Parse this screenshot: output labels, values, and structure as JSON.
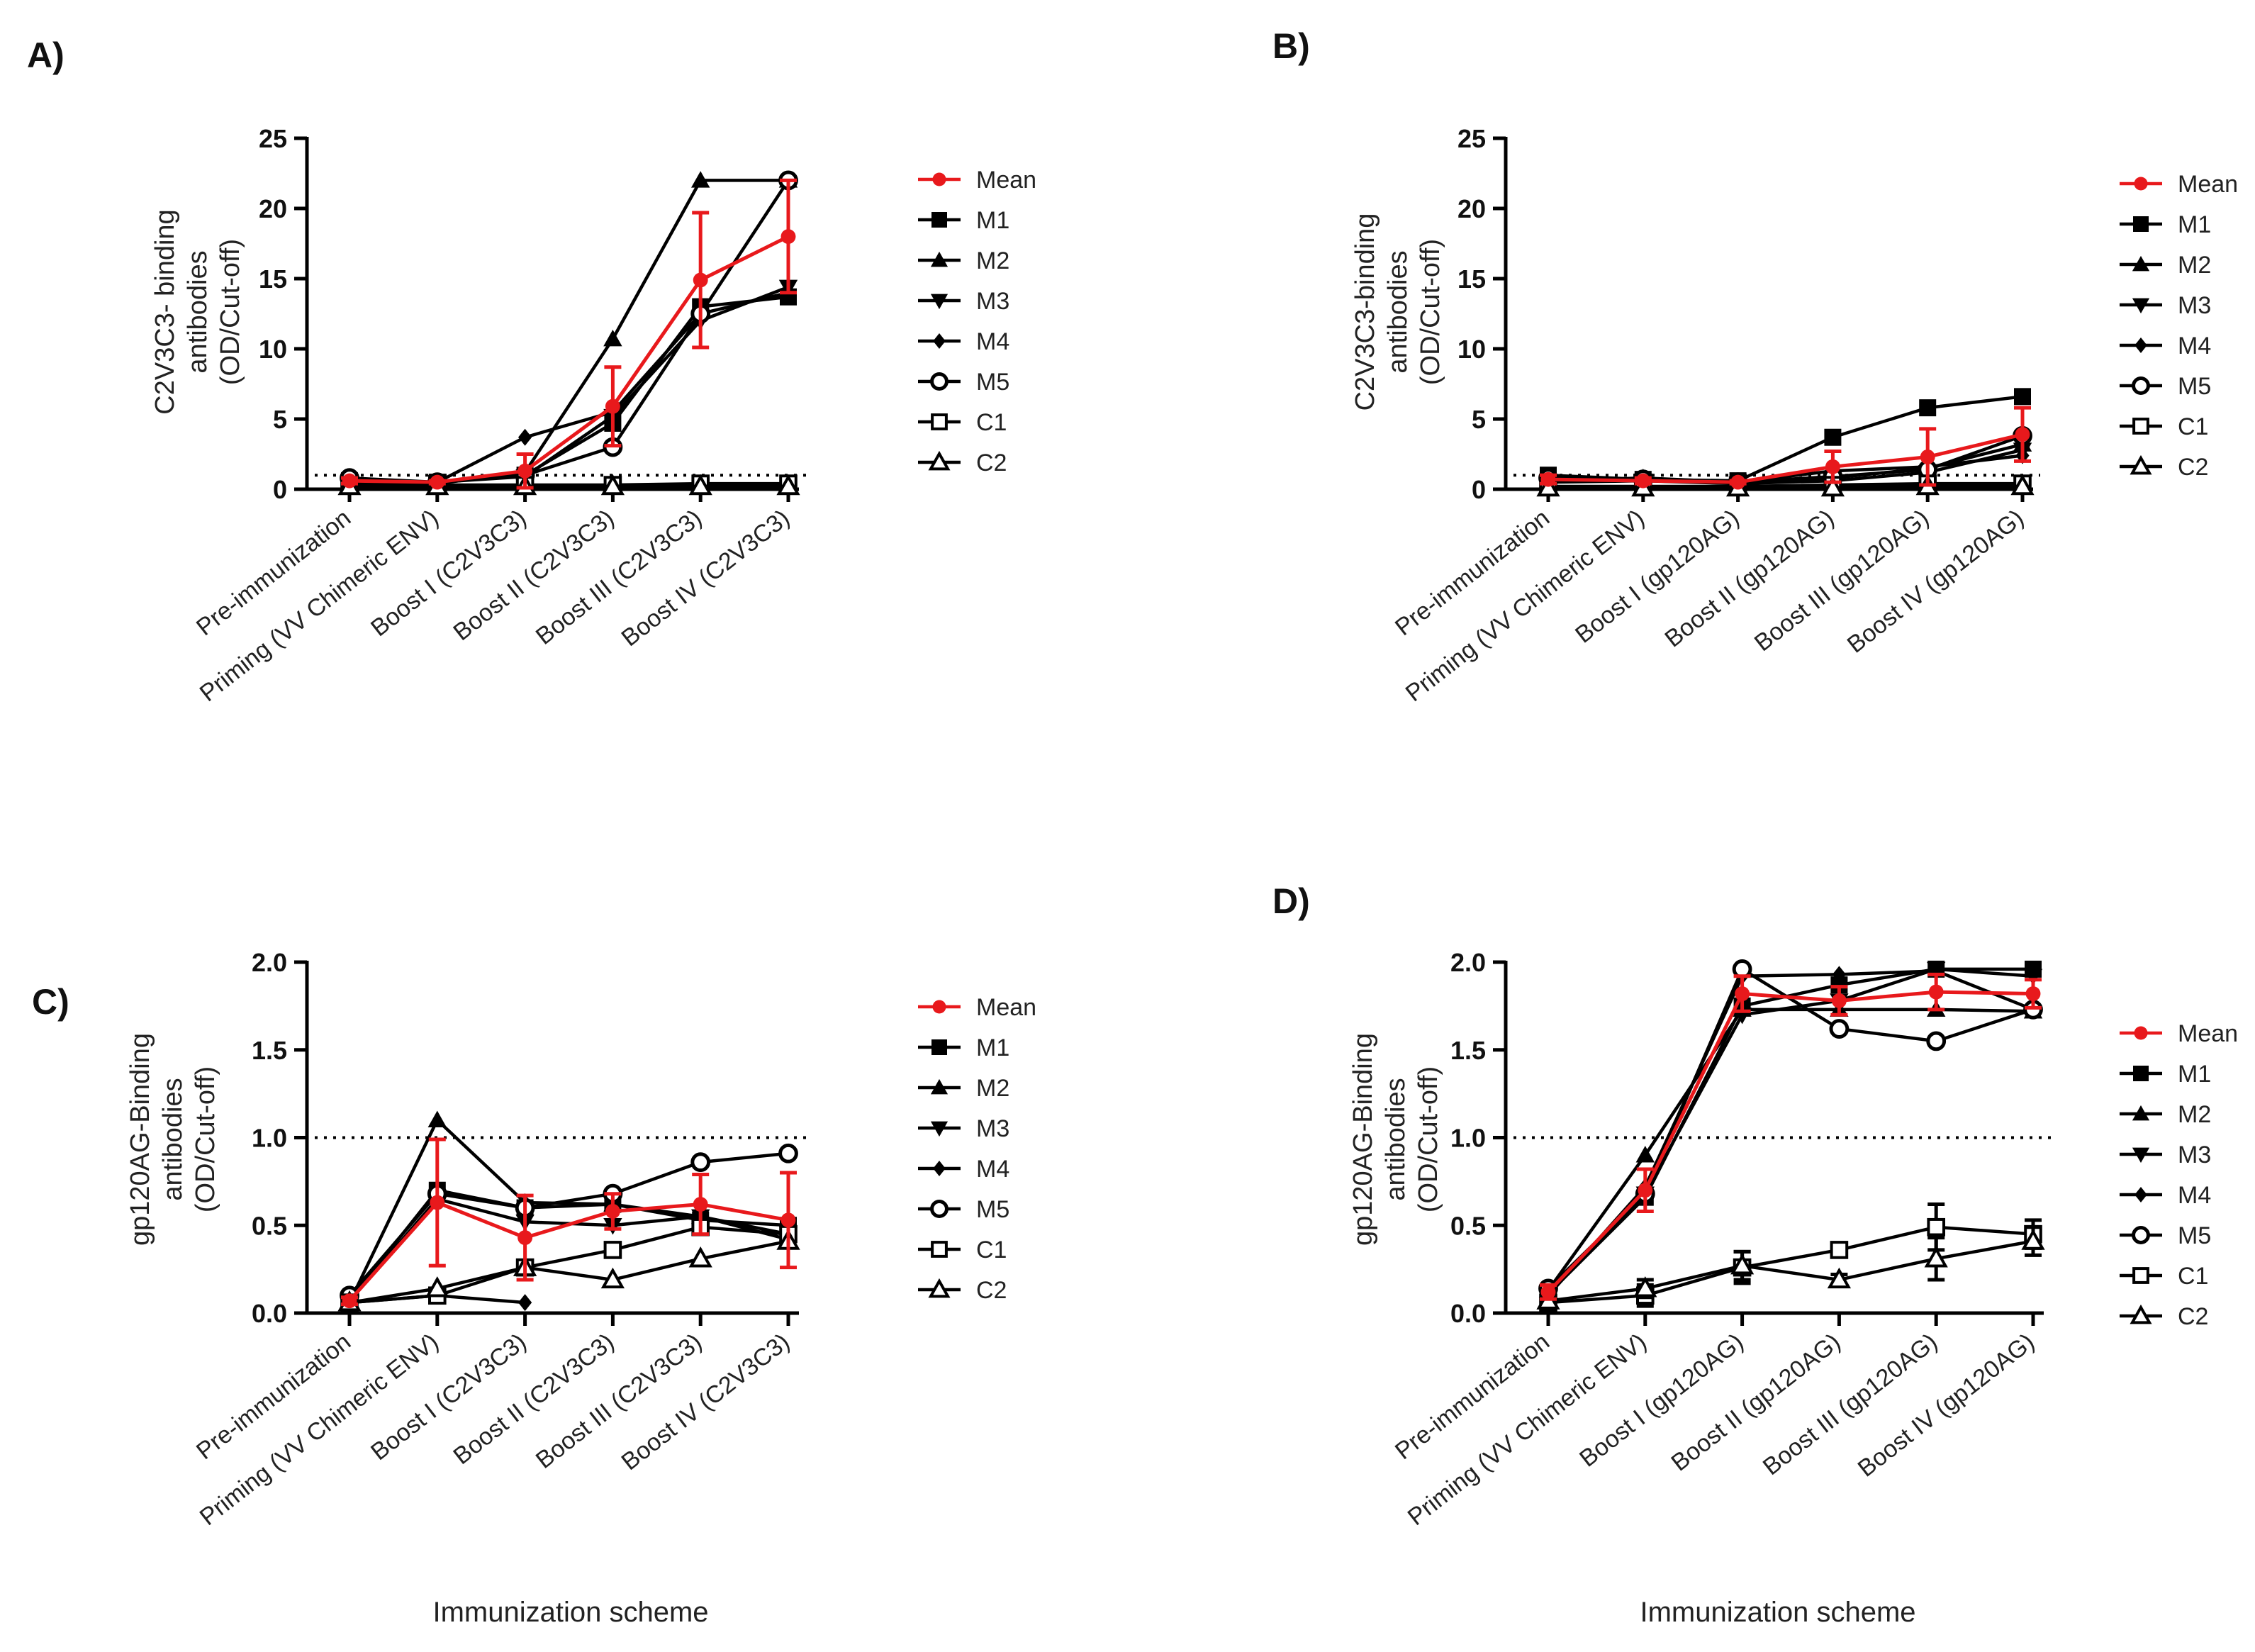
{
  "figure": {
    "xaxis_title": "Immunization scheme",
    "legend_labels": [
      "Mean",
      "M1",
      "M2",
      "M3",
      "M4",
      "M5",
      "C1",
      "C2"
    ],
    "colors": {
      "mean": "#e8191c",
      "animals": "#000000",
      "background": "#ffffff"
    }
  },
  "chart_data": [
    {
      "type": "line",
      "panel_label": "A)",
      "ylabel": [
        "C2V3C3- binding",
        "antibodies",
        "(OD/Cut-off)"
      ],
      "ylim": [
        0,
        25
      ],
      "yticks": [
        "0",
        "5",
        "10",
        "15",
        "20",
        "25"
      ],
      "cutoff": 1,
      "categories": [
        "Pre-immunization",
        "Priming (VV Chimeric ENV)",
        "Boost I (C2V3C3)",
        "Boost II (C2V3C3)",
        "Boost III (C2V3C3)",
        "Boost IV (C2V3C3)"
      ],
      "series": [
        {
          "name": "Mean",
          "values": [
            0.6,
            0.5,
            1.3,
            5.9,
            14.9,
            18.0
          ],
          "error": [
            0.2,
            0.1,
            1.2,
            2.8,
            4.8,
            4.0
          ]
        },
        {
          "name": "M1",
          "values": [
            0.6,
            0.5,
            1.0,
            4.7,
            13.0,
            13.7
          ]
        },
        {
          "name": "M2",
          "values": [
            0.5,
            0.4,
            1.2,
            10.7,
            22.0,
            22.0
          ]
        },
        {
          "name": "M3",
          "values": [
            0.5,
            0.5,
            0.9,
            5.2,
            12.0,
            14.4
          ]
        },
        {
          "name": "M4",
          "values": [
            0.4,
            0.5,
            3.7,
            5.5,
            12.5,
            14.0
          ]
        },
        {
          "name": "M5",
          "values": [
            0.8,
            0.5,
            1.0,
            3.0,
            12.5,
            22.0
          ]
        },
        {
          "name": "C1",
          "values": [
            0.3,
            0.3,
            0.3,
            0.3,
            0.4,
            0.4
          ]
        },
        {
          "name": "C2",
          "values": [
            0.2,
            0.2,
            0.2,
            0.2,
            0.2,
            0.2
          ]
        }
      ]
    },
    {
      "type": "line",
      "panel_label": "B)",
      "ylabel": [
        "C2V3C3-binding",
        "antibodies",
        "(OD/Cut-off)"
      ],
      "ylim": [
        0,
        25
      ],
      "yticks": [
        "0",
        "5",
        "10",
        "15",
        "20",
        "25"
      ],
      "cutoff": 1,
      "categories": [
        "Pre-immunization",
        "Priming (VV Chimeric ENV)",
        "Boost I (gp120AG)",
        "Boost II (gp120AG)",
        "Boost III (gp120AG)",
        "Boost IV (gp120AG)"
      ],
      "series": [
        {
          "name": "Mean",
          "values": [
            0.7,
            0.6,
            0.5,
            1.6,
            2.3,
            3.9
          ],
          "error": [
            0.3,
            0.2,
            0.1,
            1.1,
            2.0,
            1.9
          ]
        },
        {
          "name": "M1",
          "values": [
            1.0,
            0.7,
            0.6,
            3.7,
            5.8,
            6.6
          ]
        },
        {
          "name": "M2",
          "values": [
            0.6,
            0.8,
            0.5,
            0.8,
            1.5,
            3.2
          ]
        },
        {
          "name": "M3",
          "values": [
            0.5,
            0.6,
            0.4,
            0.6,
            1.2,
            2.8
          ]
        },
        {
          "name": "M4",
          "values": [
            0.6,
            0.7,
            0.5,
            1.3,
            1.6,
            2.4
          ]
        },
        {
          "name": "M5",
          "values": [
            0.8,
            0.7,
            0.5,
            0.9,
            1.4,
            3.8
          ]
        },
        {
          "name": "C1",
          "values": [
            0.2,
            0.2,
            0.2,
            0.3,
            0.4,
            0.4
          ]
        },
        {
          "name": "C2",
          "values": [
            0.1,
            0.1,
            0.1,
            0.1,
            0.2,
            0.2
          ]
        }
      ]
    },
    {
      "type": "line",
      "panel_label": "C)",
      "ylabel": [
        "gp120AG-Binding",
        "antibodies",
        "(OD/Cut-off)"
      ],
      "ylim": [
        0,
        2
      ],
      "yticks": [
        "0.0",
        "0.5",
        "1.0",
        "1.5",
        "2.0"
      ],
      "cutoff": 1,
      "categories": [
        "Pre-immunization",
        "Priming (VV Chimeric ENV)",
        "Boost I (C2V3C3)",
        "Boost II (C2V3C3)",
        "Boost III (C2V3C3)",
        "Boost IV (C2V3C3)"
      ],
      "series": [
        {
          "name": "Mean",
          "values": [
            0.07,
            0.63,
            0.43,
            0.58,
            0.62,
            0.53
          ],
          "error": [
            0.02,
            0.36,
            0.24,
            0.1,
            0.17,
            0.27
          ]
        },
        {
          "name": "M1",
          "values": [
            0.07,
            0.7,
            0.6,
            0.62,
            0.53,
            0.5
          ]
        },
        {
          "name": "M2",
          "values": [
            0.06,
            1.1,
            0.63,
            0.62,
            0.55,
            0.42
          ]
        },
        {
          "name": "M3",
          "values": [
            0.07,
            0.65,
            0.52,
            0.5,
            0.55,
            0.45
          ]
        },
        {
          "name": "M4",
          "values": [
            0.06,
            0.1,
            0.06,
            null,
            null,
            null
          ]
        },
        {
          "name": "M5",
          "values": [
            0.1,
            0.68,
            0.6,
            0.68,
            0.86,
            0.91
          ]
        },
        {
          "name": "C1",
          "values": [
            0.06,
            0.1,
            0.26,
            0.36,
            0.49,
            0.45
          ]
        },
        {
          "name": "C2",
          "values": [
            0.06,
            0.14,
            0.26,
            0.19,
            0.31,
            0.41
          ]
        }
      ]
    },
    {
      "type": "line",
      "panel_label": "D)",
      "ylabel": [
        "gp120AG-Binding",
        "antibodies",
        "(OD/Cut-off)"
      ],
      "ylim": [
        0,
        2
      ],
      "yticks": [
        "0.0",
        "0.5",
        "1.0",
        "1.5",
        "2.0"
      ],
      "cutoff": 1,
      "categories": [
        "Pre-immunization",
        "Priming (VV Chimeric ENV)",
        "Boost I (gp120AG)",
        "Boost II (gp120AG)",
        "Boost III (gp120AG)",
        "Boost IV (gp120AG)"
      ],
      "series": [
        {
          "name": "Mean",
          "values": [
            0.12,
            0.7,
            1.82,
            1.78,
            1.83,
            1.82
          ],
          "error": [
            0.04,
            0.12,
            0.1,
            0.08,
            0.1,
            0.08
          ]
        },
        {
          "name": "M1",
          "values": [
            0.11,
            0.66,
            1.75,
            1.87,
            1.96,
            1.96
          ]
        },
        {
          "name": "M2",
          "values": [
            0.13,
            0.9,
            1.73,
            1.73,
            1.73,
            1.72
          ]
        },
        {
          "name": "M3",
          "values": [
            0.12,
            0.68,
            1.7,
            1.78,
            1.96,
            1.92
          ]
        },
        {
          "name": "M4",
          "values": [
            0.1,
            0.72,
            1.92,
            1.93,
            1.95,
            1.73
          ]
        },
        {
          "name": "M5",
          "values": [
            0.14,
            0.68,
            1.96,
            1.62,
            1.55,
            1.73
          ]
        },
        {
          "name": "C1",
          "values": [
            0.06,
            0.1,
            0.26,
            0.36,
            0.49,
            0.45
          ],
          "error": [
            0.03,
            0.06,
            0.09,
            0.04,
            0.13,
            0.08
          ]
        },
        {
          "name": "C2",
          "values": [
            0.07,
            0.14,
            0.27,
            0.19,
            0.31,
            0.41
          ],
          "error": [
            0.02,
            0.05,
            0.08,
            0.03,
            0.12,
            0.08
          ]
        }
      ]
    }
  ]
}
